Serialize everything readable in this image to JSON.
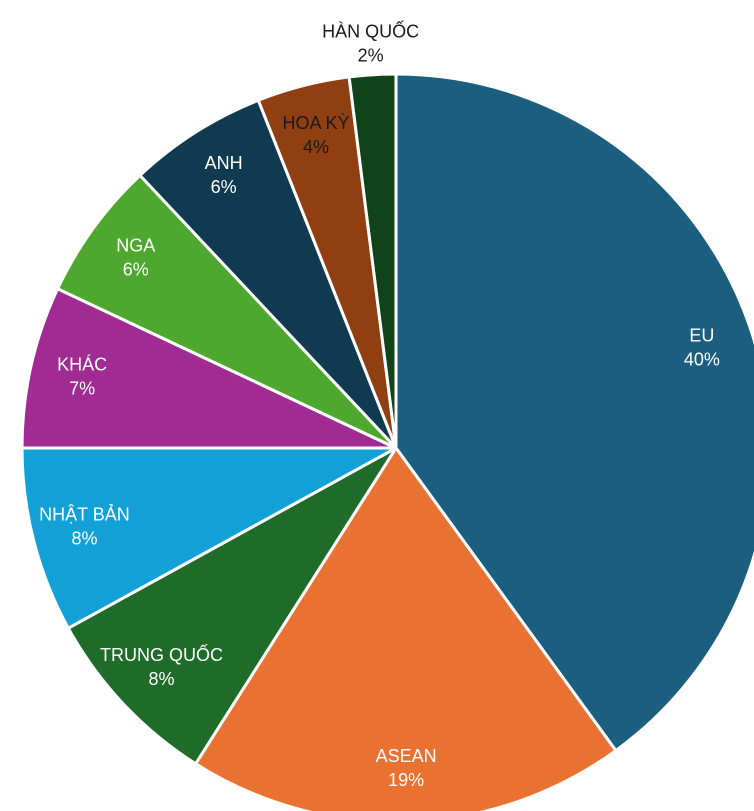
{
  "chart_data": {
    "type": "pie",
    "categories": [
      "EU",
      "ASEAN",
      "TRUNG QUỐC",
      "NHẬT BẢN",
      "KHÁC",
      "NGA",
      "ANH",
      "HOA KỲ",
      "HÀN QUỐC"
    ],
    "values": [
      40,
      19,
      8,
      8,
      7,
      6,
      6,
      4,
      2
    ],
    "value_labels": [
      "40%",
      "19%",
      "8%",
      "8%",
      "7%",
      "6%",
      "6%",
      "4%",
      "2%"
    ],
    "colors": [
      "#1b5e80",
      "#e97132",
      "#1e6b2a",
      "#12a0d7",
      "#a02b93",
      "#4ea72e",
      "#0f3a4f",
      "#8f3f12",
      "#10431a"
    ],
    "label_colors": [
      "#ffffff",
      "#ffffff",
      "#ffffff",
      "#ffffff",
      "#ffffff",
      "#ffffff",
      "#ffffff",
      "#1a1a1a",
      "#1a1a1a"
    ]
  }
}
